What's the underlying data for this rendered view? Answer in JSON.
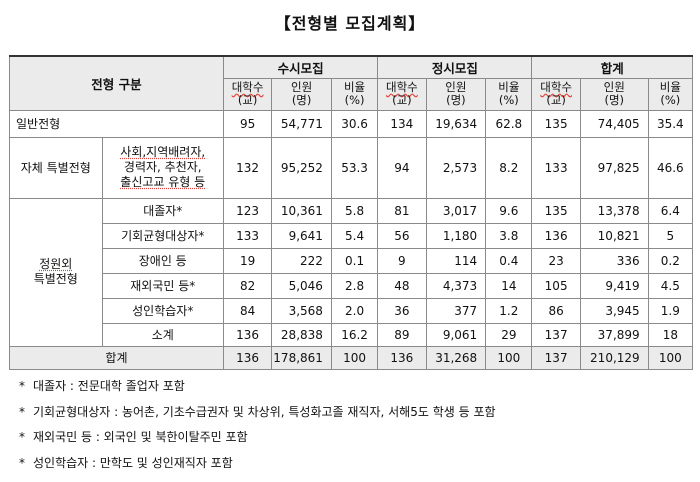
{
  "title": "【전형별 모집계획】",
  "header": {
    "group_label": "전형 구분",
    "susi": "수시모집",
    "jeongsi": "정시모집",
    "total": "합계",
    "col_univ": [
      "대학수",
      "(교)"
    ],
    "col_people": [
      "인원",
      "(명)"
    ],
    "col_ratio": [
      "비율",
      "(%)"
    ]
  },
  "rows": {
    "general": {
      "label": "일반전형",
      "values": [
        "95",
        "54,771",
        "30.6",
        "134",
        "19,634",
        "62.8",
        "135",
        "74,405",
        "35.4"
      ]
    },
    "self": {
      "label": "자체 특별전형",
      "sub": [
        "사회,지역배려자,",
        "경력자, 추천자,",
        "출신고교 유형 등"
      ],
      "values": [
        "132",
        "95,252",
        "53.3",
        "94",
        "2,573",
        "8.2",
        "133",
        "97,825",
        "46.6"
      ]
    },
    "extra_label": [
      "정원외",
      "특별전형"
    ],
    "extra": [
      {
        "label": "대졸자*",
        "values": [
          "123",
          "10,361",
          "5.8",
          "81",
          "3,017",
          "9.6",
          "135",
          "13,378",
          "6.4"
        ]
      },
      {
        "label": "기회균형대상자*",
        "values": [
          "133",
          "9,641",
          "5.4",
          "56",
          "1,180",
          "3.8",
          "136",
          "10,821",
          "5"
        ]
      },
      {
        "label": "장애인 등",
        "values": [
          "19",
          "222",
          "0.1",
          "9",
          "114",
          "0.4",
          "23",
          "336",
          "0.2"
        ]
      },
      {
        "label": "재외국민 등*",
        "values": [
          "82",
          "5,046",
          "2.8",
          "48",
          "4,373",
          "14",
          "105",
          "9,419",
          "4.5"
        ]
      },
      {
        "label": "성인학습자*",
        "values": [
          "84",
          "3,568",
          "2.0",
          "36",
          "377",
          "1.2",
          "86",
          "3,945",
          "1.9"
        ]
      }
    ],
    "subtotal": {
      "label": "소계",
      "values": [
        "136",
        "28,838",
        "16.2",
        "89",
        "9,061",
        "29",
        "137",
        "37,899",
        "18"
      ]
    },
    "grand_total": {
      "label": "합계",
      "values": [
        "136",
        "178,861",
        "100",
        "136",
        "31,268",
        "100",
        "137",
        "210,129",
        "100"
      ]
    }
  },
  "notes": [
    {
      "mark": "*",
      "text": "대졸자 : 전문대학 졸업자 포함"
    },
    {
      "mark": "*",
      "text": "기회균형대상자 : 농어촌, 기초수급권자 및 차상위, 특성화고졸 재직자, 서해5도 학생 등 포함"
    },
    {
      "mark": "*",
      "text": "재외국민 등 : 외국인 및 북한이탈주민 포함"
    },
    {
      "mark": "*",
      "text": "성인학습자 : 만학도 및 성인재직자 포함"
    }
  ]
}
